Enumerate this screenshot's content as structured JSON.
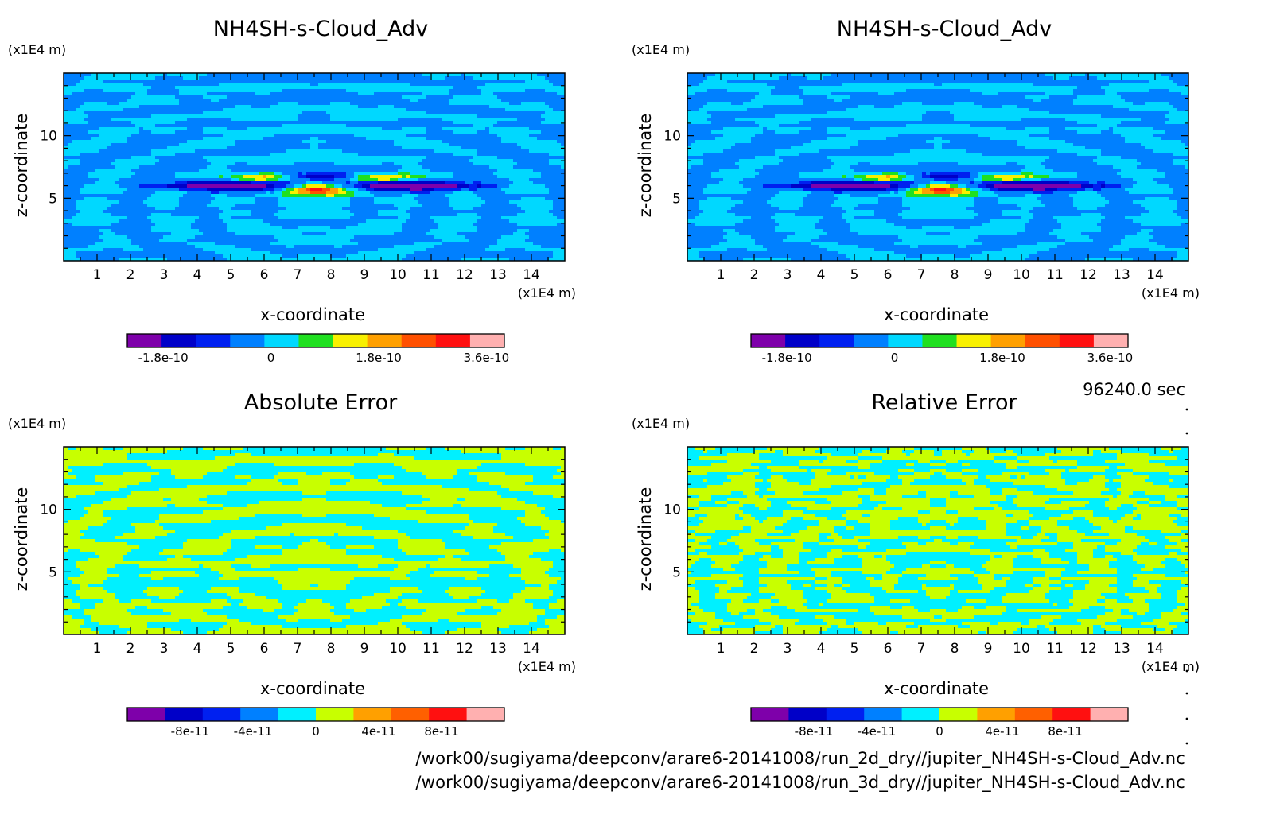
{
  "time_label": "96240.0 sec",
  "footer": {
    "file_line_1": "/work00/sugiyama/deepconv/arare6-20141008/run_2d_dry//jupiter_NH4SH-s-Cloud_Adv.nc",
    "file_line_2": "/work00/sugiyama/deepconv/arare6-20141008/run_3d_dry//jupiter_NH4SH-s-Cloud_Adv.nc"
  },
  "chart_data": [
    {
      "type": "heatmap",
      "id": "p1",
      "title": "NH4SH-s-Cloud_Adv",
      "xlabel": "x-coordinate",
      "ylabel": "z-coordinate",
      "x_unit": "(x1E4 m)",
      "y_unit": "(x1E4 m)",
      "xlim": [
        0,
        15
      ],
      "ylim": [
        0,
        15
      ],
      "x_ticks": [
        1,
        2,
        3,
        4,
        5,
        6,
        7,
        8,
        9,
        10,
        11,
        12,
        13,
        14
      ],
      "y_ticks": [
        5,
        10
      ],
      "field": "signal",
      "colorbar": {
        "vmin": -2.4e-10,
        "vmax": 3.9e-10,
        "colors": [
          "#7e00aa",
          "#0000c8",
          "#0020f0",
          "#0080ff",
          "#00d8ff",
          "#20e020",
          "#f8f000",
          "#ffa000",
          "#ff5000",
          "#ff1010",
          "#ffb0b0"
        ],
        "ticks": [
          {
            "value": -1.8e-10,
            "label": "-1.8e-10"
          },
          {
            "value": 0,
            "label": "0"
          },
          {
            "value": 1.8e-10,
            "label": "1.8e-10"
          },
          {
            "value": 3.6e-10,
            "label": "3.6e-10"
          }
        ]
      }
    },
    {
      "type": "heatmap",
      "id": "p2",
      "title": "NH4SH-s-Cloud_Adv",
      "xlabel": "x-coordinate",
      "ylabel": "z-coordinate",
      "x_unit": "(x1E4 m)",
      "y_unit": "(x1E4 m)",
      "xlim": [
        0,
        15
      ],
      "ylim": [
        0,
        15
      ],
      "x_ticks": [
        1,
        2,
        3,
        4,
        5,
        6,
        7,
        8,
        9,
        10,
        11,
        12,
        13,
        14
      ],
      "y_ticks": [
        5,
        10
      ],
      "field": "signal",
      "colorbar": {
        "vmin": -2.4e-10,
        "vmax": 3.9e-10,
        "colors": [
          "#7e00aa",
          "#0000c8",
          "#0020f0",
          "#0080ff",
          "#00d8ff",
          "#20e020",
          "#f8f000",
          "#ffa000",
          "#ff5000",
          "#ff1010",
          "#ffb0b0"
        ],
        "ticks": [
          {
            "value": -1.8e-10,
            "label": "-1.8e-10"
          },
          {
            "value": 0,
            "label": "0"
          },
          {
            "value": 1.8e-10,
            "label": "1.8e-10"
          },
          {
            "value": 3.6e-10,
            "label": "3.6e-10"
          }
        ]
      }
    },
    {
      "type": "heatmap",
      "id": "p3",
      "title": "Absolute Error",
      "xlabel": "x-coordinate",
      "ylabel": "z-coordinate",
      "x_unit": "(x1E4 m)",
      "y_unit": "(x1E4 m)",
      "xlim": [
        0,
        15
      ],
      "ylim": [
        0,
        15
      ],
      "x_ticks": [
        1,
        2,
        3,
        4,
        5,
        6,
        7,
        8,
        9,
        10,
        11,
        12,
        13,
        14
      ],
      "y_ticks": [
        5,
        10
      ],
      "field": "error",
      "colorbar": {
        "vmin": -1.2e-10,
        "vmax": 1.2e-10,
        "colors": [
          "#7e00aa",
          "#0000c8",
          "#0020f0",
          "#0080ff",
          "#00f0ff",
          "#c8ff00",
          "#ffa000",
          "#ff6000",
          "#ff1010",
          "#ffb0b0"
        ],
        "ticks": [
          {
            "value": -8e-11,
            "label": "-8e-11"
          },
          {
            "value": -4e-11,
            "label": "-4e-11"
          },
          {
            "value": 0,
            "label": "0"
          },
          {
            "value": 4e-11,
            "label": "4e-11"
          },
          {
            "value": 8e-11,
            "label": "8e-11"
          }
        ]
      }
    },
    {
      "type": "heatmap",
      "id": "p4",
      "title": "Relative Error",
      "xlabel": "x-coordinate",
      "ylabel": "z-coordinate",
      "x_unit": "(x1E4 m)",
      "y_unit": "(x1E4 m)",
      "xlim": [
        0,
        15
      ],
      "ylim": [
        0,
        15
      ],
      "x_ticks": [
        1,
        2,
        3,
        4,
        5,
        6,
        7,
        8,
        9,
        10,
        11,
        12,
        13,
        14
      ],
      "y_ticks": [
        5,
        10
      ],
      "field": "error2",
      "colorbar": {
        "vmin": -1.2e-10,
        "vmax": 1.2e-10,
        "colors": [
          "#7e00aa",
          "#0000c8",
          "#0020f0",
          "#0080ff",
          "#00f0ff",
          "#c8ff00",
          "#ffa000",
          "#ff6000",
          "#ff1010",
          "#ffb0b0"
        ],
        "ticks": [
          {
            "value": -8e-11,
            "label": "-8e-11"
          },
          {
            "value": -4e-11,
            "label": "-4e-11"
          },
          {
            "value": 0,
            "label": "0"
          },
          {
            "value": 4e-11,
            "label": "4e-11"
          },
          {
            "value": 8e-11,
            "label": "8e-11"
          }
        ]
      }
    }
  ]
}
